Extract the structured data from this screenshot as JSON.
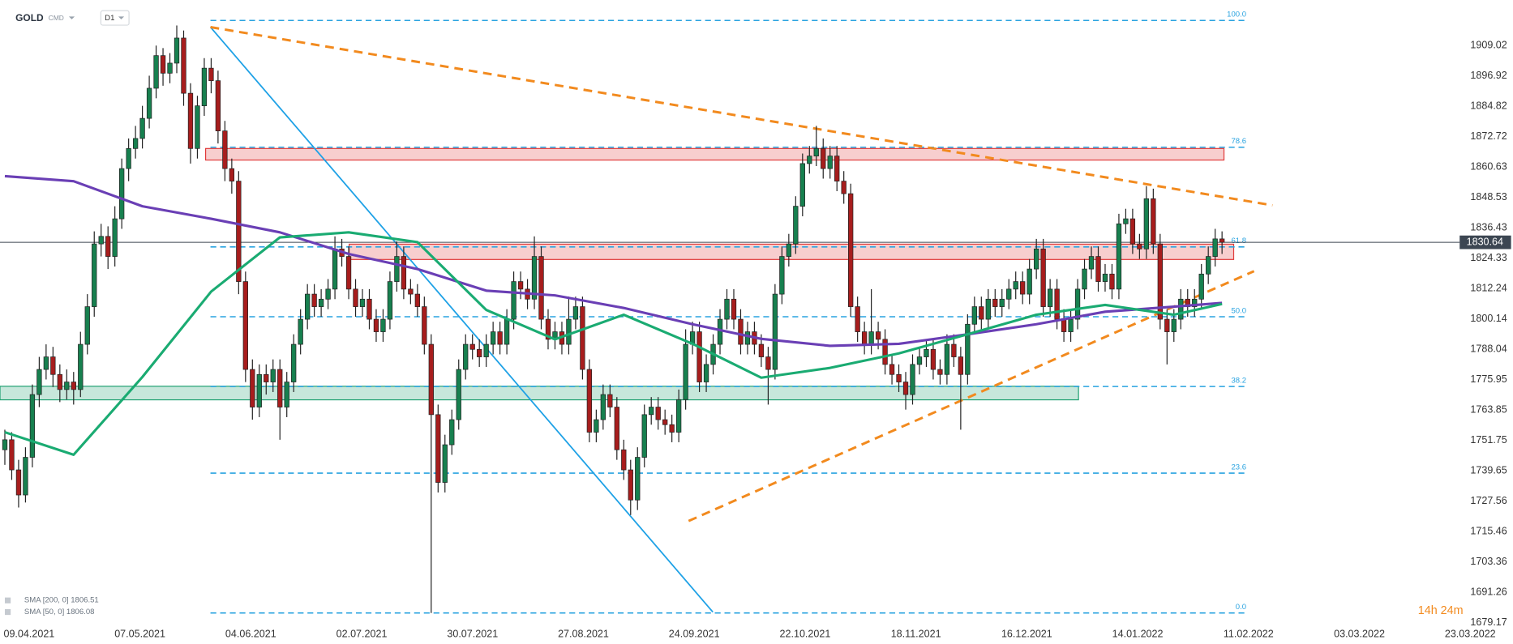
{
  "header": {
    "symbol": "GOLD",
    "market": "CMD",
    "interval": "D1"
  },
  "chart_data": {
    "type": "candlestick",
    "ylim": [
      1677.2,
      1927.15
    ],
    "yticks": [
      1909.02,
      1896.92,
      1884.82,
      1872.72,
      1860.63,
      1848.53,
      1836.43,
      1824.33,
      1812.24,
      1800.14,
      1788.04,
      1775.95,
      1763.85,
      1751.75,
      1739.65,
      1727.56,
      1715.46,
      1703.36,
      1691.26,
      1679.17
    ],
    "xticks": [
      "09.04.2021",
      "07.05.2021",
      "04.06.2021",
      "02.07.2021",
      "30.07.2021",
      "27.08.2021",
      "24.09.2021",
      "22.10.2021",
      "18.11.2021",
      "16.12.2021",
      "14.01.2022",
      "11.02.2022",
      "03.03.2022",
      "23.03.2022"
    ],
    "up_color": "#17804f",
    "down_color": "#a71d1d",
    "last_price": 1830.64,
    "timer": "14h 24m",
    "ohlc": [
      [
        1748,
        1756,
        1742,
        1752
      ],
      [
        1752,
        1755,
        1736,
        1740
      ],
      [
        1740,
        1744,
        1725,
        1730
      ],
      [
        1730,
        1749,
        1727,
        1745
      ],
      [
        1745,
        1774,
        1741,
        1770
      ],
      [
        1770,
        1785,
        1765,
        1780
      ],
      [
        1780,
        1790,
        1776,
        1785
      ],
      [
        1785,
        1789,
        1773,
        1778
      ],
      [
        1778,
        1782,
        1767,
        1772
      ],
      [
        1772,
        1780,
        1768,
        1775
      ],
      [
        1775,
        1779,
        1766,
        1772
      ],
      [
        1772,
        1795,
        1769,
        1790
      ],
      [
        1790,
        1810,
        1786,
        1805
      ],
      [
        1805,
        1835,
        1801,
        1830
      ],
      [
        1830,
        1838,
        1825,
        1833
      ],
      [
        1833,
        1837,
        1820,
        1825
      ],
      [
        1825,
        1845,
        1821,
        1840
      ],
      [
        1840,
        1864,
        1836,
        1860
      ],
      [
        1860,
        1872,
        1855,
        1868
      ],
      [
        1868,
        1877,
        1864,
        1872
      ],
      [
        1872,
        1885,
        1868,
        1880
      ],
      [
        1880,
        1897,
        1876,
        1892
      ],
      [
        1892,
        1909,
        1888,
        1905
      ],
      [
        1905,
        1908,
        1893,
        1898
      ],
      [
        1898,
        1906,
        1894,
        1902
      ],
      [
        1902,
        1917,
        1898,
        1912
      ],
      [
        1912,
        1915,
        1885,
        1890
      ],
      [
        1890,
        1894,
        1862,
        1868
      ],
      [
        1868,
        1889,
        1864,
        1885
      ],
      [
        1885,
        1904,
        1881,
        1900
      ],
      [
        1900,
        1904,
        1890,
        1895
      ],
      [
        1895,
        1899,
        1870,
        1875
      ],
      [
        1875,
        1879,
        1855,
        1860
      ],
      [
        1860,
        1864,
        1850,
        1855
      ],
      [
        1855,
        1859,
        1810,
        1815
      ],
      [
        1815,
        1819,
        1775,
        1780
      ],
      [
        1780,
        1784,
        1760,
        1765
      ],
      [
        1765,
        1782,
        1761,
        1778
      ],
      [
        1778,
        1782,
        1770,
        1775
      ],
      [
        1775,
        1784,
        1771,
        1780
      ],
      [
        1780,
        1784,
        1752,
        1765
      ],
      [
        1765,
        1779,
        1761,
        1775
      ],
      [
        1775,
        1794,
        1771,
        1790
      ],
      [
        1790,
        1804,
        1786,
        1800
      ],
      [
        1800,
        1814,
        1796,
        1810
      ],
      [
        1810,
        1814,
        1801,
        1805
      ],
      [
        1805,
        1812,
        1801,
        1808
      ],
      [
        1808,
        1816,
        1804,
        1812
      ],
      [
        1812,
        1833,
        1808,
        1828
      ],
      [
        1828,
        1832,
        1821,
        1825
      ],
      [
        1825,
        1829,
        1808,
        1812
      ],
      [
        1812,
        1816,
        1801,
        1805
      ],
      [
        1805,
        1812,
        1801,
        1808
      ],
      [
        1808,
        1812,
        1796,
        1800
      ],
      [
        1800,
        1804,
        1791,
        1795
      ],
      [
        1795,
        1804,
        1791,
        1800
      ],
      [
        1800,
        1819,
        1796,
        1815
      ],
      [
        1815,
        1831,
        1811,
        1825
      ],
      [
        1825,
        1829,
        1808,
        1812
      ],
      [
        1812,
        1816,
        1806,
        1810
      ],
      [
        1810,
        1814,
        1801,
        1805
      ],
      [
        1805,
        1809,
        1786,
        1790
      ],
      [
        1790,
        1794,
        1683,
        1762
      ],
      [
        1762,
        1766,
        1731,
        1735
      ],
      [
        1735,
        1754,
        1731,
        1750
      ],
      [
        1750,
        1764,
        1746,
        1760
      ],
      [
        1760,
        1784,
        1756,
        1780
      ],
      [
        1780,
        1794,
        1776,
        1790
      ],
      [
        1790,
        1794,
        1784,
        1788
      ],
      [
        1788,
        1792,
        1781,
        1785
      ],
      [
        1785,
        1794,
        1781,
        1790
      ],
      [
        1790,
        1799,
        1786,
        1795
      ],
      [
        1795,
        1799,
        1786,
        1790
      ],
      [
        1790,
        1804,
        1786,
        1800
      ],
      [
        1800,
        1819,
        1796,
        1815
      ],
      [
        1815,
        1819,
        1808,
        1812
      ],
      [
        1812,
        1816,
        1804,
        1808
      ],
      [
        1808,
        1833,
        1804,
        1825
      ],
      [
        1825,
        1829,
        1796,
        1800
      ],
      [
        1800,
        1804,
        1788,
        1792
      ],
      [
        1792,
        1799,
        1788,
        1795
      ],
      [
        1795,
        1799,
        1786,
        1790
      ],
      [
        1790,
        1809,
        1786,
        1800
      ],
      [
        1800,
        1809,
        1796,
        1805
      ],
      [
        1805,
        1809,
        1776,
        1780
      ],
      [
        1780,
        1784,
        1751,
        1755
      ],
      [
        1755,
        1764,
        1751,
        1760
      ],
      [
        1760,
        1774,
        1756,
        1770
      ],
      [
        1770,
        1774,
        1761,
        1765
      ],
      [
        1765,
        1769,
        1744,
        1748
      ],
      [
        1748,
        1752,
        1736,
        1740
      ],
      [
        1740,
        1744,
        1722,
        1728
      ],
      [
        1728,
        1749,
        1724,
        1745
      ],
      [
        1745,
        1766,
        1741,
        1762
      ],
      [
        1762,
        1769,
        1758,
        1765
      ],
      [
        1765,
        1769,
        1756,
        1760
      ],
      [
        1760,
        1764,
        1754,
        1758
      ],
      [
        1758,
        1762,
        1751,
        1755
      ],
      [
        1755,
        1772,
        1751,
        1768
      ],
      [
        1768,
        1796,
        1764,
        1790
      ],
      [
        1790,
        1799,
        1786,
        1795
      ],
      [
        1795,
        1799,
        1771,
        1775
      ],
      [
        1775,
        1786,
        1771,
        1782
      ],
      [
        1782,
        1794,
        1778,
        1790
      ],
      [
        1790,
        1804,
        1786,
        1800
      ],
      [
        1800,
        1812,
        1796,
        1808
      ],
      [
        1808,
        1812,
        1796,
        1800
      ],
      [
        1800,
        1804,
        1786,
        1790
      ],
      [
        1790,
        1799,
        1786,
        1795
      ],
      [
        1795,
        1799,
        1786,
        1790
      ],
      [
        1790,
        1794,
        1781,
        1785
      ],
      [
        1785,
        1789,
        1766,
        1780
      ],
      [
        1780,
        1814,
        1776,
        1810
      ],
      [
        1810,
        1829,
        1806,
        1825
      ],
      [
        1825,
        1834,
        1821,
        1830
      ],
      [
        1830,
        1849,
        1826,
        1845
      ],
      [
        1845,
        1866,
        1841,
        1862
      ],
      [
        1862,
        1869,
        1858,
        1865
      ],
      [
        1865,
        1877,
        1861,
        1868
      ],
      [
        1868,
        1872,
        1856,
        1860
      ],
      [
        1860,
        1869,
        1856,
        1865
      ],
      [
        1865,
        1869,
        1851,
        1855
      ],
      [
        1855,
        1859,
        1846,
        1850
      ],
      [
        1850,
        1854,
        1801,
        1805
      ],
      [
        1805,
        1809,
        1791,
        1795
      ],
      [
        1795,
        1799,
        1786,
        1790
      ],
      [
        1790,
        1812,
        1786,
        1795
      ],
      [
        1795,
        1799,
        1788,
        1792
      ],
      [
        1792,
        1796,
        1778,
        1782
      ],
      [
        1782,
        1786,
        1774,
        1778
      ],
      [
        1778,
        1782,
        1771,
        1775
      ],
      [
        1775,
        1779,
        1764,
        1770
      ],
      [
        1770,
        1786,
        1766,
        1782
      ],
      [
        1782,
        1789,
        1778,
        1785
      ],
      [
        1785,
        1792,
        1781,
        1788
      ],
      [
        1788,
        1792,
        1776,
        1780
      ],
      [
        1780,
        1784,
        1774,
        1778
      ],
      [
        1778,
        1794,
        1774,
        1790
      ],
      [
        1790,
        1794,
        1781,
        1785
      ],
      [
        1785,
        1789,
        1756,
        1778
      ],
      [
        1778,
        1802,
        1774,
        1798
      ],
      [
        1798,
        1809,
        1794,
        1805
      ],
      [
        1805,
        1809,
        1796,
        1800
      ],
      [
        1800,
        1812,
        1796,
        1808
      ],
      [
        1808,
        1812,
        1801,
        1805
      ],
      [
        1805,
        1812,
        1801,
        1808
      ],
      [
        1808,
        1816,
        1804,
        1812
      ],
      [
        1812,
        1819,
        1808,
        1815
      ],
      [
        1815,
        1819,
        1806,
        1810
      ],
      [
        1810,
        1824,
        1806,
        1820
      ],
      [
        1820,
        1832,
        1816,
        1828
      ],
      [
        1828,
        1832,
        1801,
        1805
      ],
      [
        1805,
        1816,
        1801,
        1812
      ],
      [
        1812,
        1816,
        1796,
        1800
      ],
      [
        1800,
        1804,
        1791,
        1795
      ],
      [
        1795,
        1804,
        1791,
        1800
      ],
      [
        1800,
        1816,
        1796,
        1812
      ],
      [
        1812,
        1824,
        1808,
        1820
      ],
      [
        1820,
        1829,
        1816,
        1825
      ],
      [
        1825,
        1829,
        1811,
        1815
      ],
      [
        1815,
        1822,
        1811,
        1818
      ],
      [
        1818,
        1822,
        1808,
        1812
      ],
      [
        1812,
        1842,
        1808,
        1838
      ],
      [
        1838,
        1844,
        1834,
        1840
      ],
      [
        1840,
        1844,
        1826,
        1830
      ],
      [
        1830,
        1834,
        1824,
        1828
      ],
      [
        1828,
        1853,
        1824,
        1848
      ],
      [
        1848,
        1852,
        1826,
        1830
      ],
      [
        1830,
        1834,
        1796,
        1800
      ],
      [
        1800,
        1804,
        1782,
        1795
      ],
      [
        1795,
        1804,
        1791,
        1800
      ],
      [
        1800,
        1812,
        1796,
        1808
      ],
      [
        1808,
        1812,
        1801,
        1805
      ],
      [
        1805,
        1812,
        1801,
        1808
      ],
      [
        1808,
        1822,
        1804,
        1818
      ],
      [
        1818,
        1829,
        1814,
        1825
      ],
      [
        1825,
        1836,
        1821,
        1832
      ],
      [
        1832,
        1835,
        1826,
        1830.64
      ]
    ],
    "sma": [
      {
        "name": "SMA [200, 0] 1806.51",
        "color": "#6a3fb5",
        "values": [
          1857,
          1855,
          1845,
          1840,
          1834.6,
          1826,
          1820,
          1811.4,
          1809.5,
          1804.5,
          1798,
          1792.2,
          1789.4,
          1790.2,
          1794,
          1798,
          1803,
          1805,
          1806.51
        ]
      },
      {
        "name": "SMA [50, 0] 1806.08",
        "color": "#1aab72",
        "values": [
          1755,
          1746,
          1777,
          1811,
          1832.6,
          1834.6,
          1830.7,
          1803.7,
          1792,
          1801.8,
          1790.2,
          1776.7,
          1780.6,
          1786.4,
          1794,
          1801.8,
          1805.7,
          1801.8,
          1806.08
        ]
      }
    ],
    "fib_levels": [
      {
        "label": "100.0",
        "price": 1919
      },
      {
        "label": "78.6",
        "price": 1868.5
      },
      {
        "label": "61.8",
        "price": 1828.8
      },
      {
        "label": "50.0",
        "price": 1801
      },
      {
        "label": "38.2",
        "price": 1773.2
      },
      {
        "label": "23.6",
        "price": 1738.7
      },
      {
        "label": "0.0",
        "price": 1683
      }
    ],
    "zones": [
      {
        "color": "#e03a3a",
        "range": [
          1868,
          1863.4
        ]
      },
      {
        "color": "#e03a3a",
        "range": [
          1829.9,
          1823.8
        ]
      },
      {
        "color": "#1fa070",
        "range": [
          1773.3,
          1767.9
        ]
      }
    ]
  }
}
